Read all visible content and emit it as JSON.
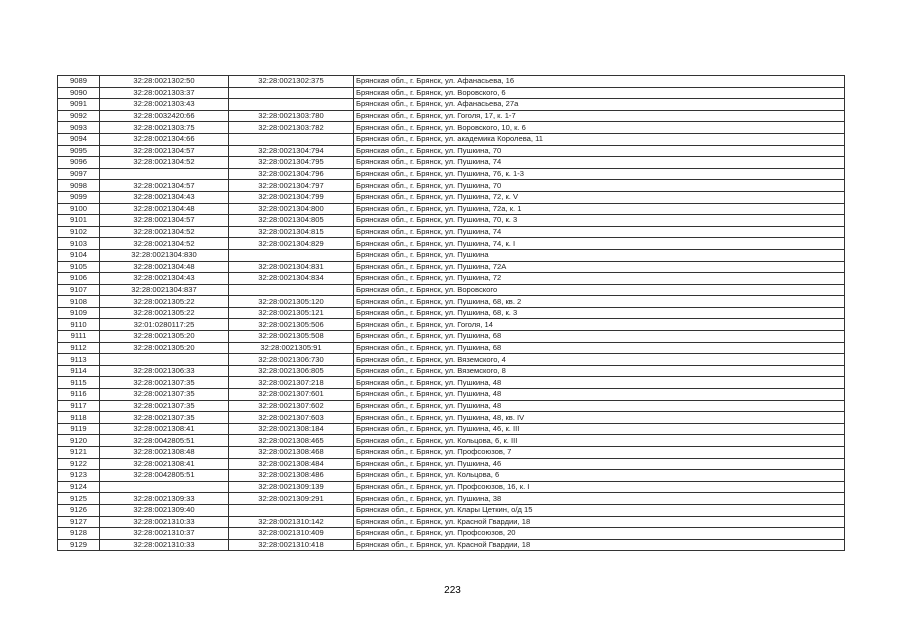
{
  "table": {
    "rows": [
      [
        "9089",
        "32:28:0021302:50",
        "32:28:0021302:375",
        "Брянская обл., г. Брянск, ул. Афанасьева, 16"
      ],
      [
        "9090",
        "32:28:0021303:37",
        "",
        "Брянская обл., г. Брянск, ул. Воровского, 6"
      ],
      [
        "9091",
        "32:28:0021303:43",
        "",
        "Брянская обл., г. Брянск, ул. Афанасьева, 27а"
      ],
      [
        "9092",
        "32:28:0032420:66",
        "32:28:0021303:780",
        "Брянская обл., г. Брянск, ул. Гоголя, 17, к. 1-7"
      ],
      [
        "9093",
        "32:28:0021303:75",
        "32:28:0021303:782",
        "Брянская обл., г. Брянск, ул. Воровского, 10, к. 6"
      ],
      [
        "9094",
        "32:28:0021304:66",
        "",
        "Брянская обл., г. Брянск, ул. академика Королева, 11"
      ],
      [
        "9095",
        "32:28:0021304:57",
        "32:28:0021304:794",
        "Брянская обл., г. Брянск, ул. Пушкина, 70"
      ],
      [
        "9096",
        "32:28:0021304:52",
        "32:28:0021304:795",
        "Брянская обл., г. Брянск, ул. Пушкина, 74"
      ],
      [
        "9097",
        "",
        "32:28:0021304:796",
        "Брянская обл., г. Брянск, ул. Пушкина, 76, к. 1-3"
      ],
      [
        "9098",
        "32:28:0021304:57",
        "32:28:0021304:797",
        "Брянская обл., г. Брянск, ул. Пушкина, 70"
      ],
      [
        "9099",
        "32:28:0021304:43",
        "32:28:0021304:799",
        "Брянская обл., г. Брянск, ул. Пушкина, 72, к. V"
      ],
      [
        "9100",
        "32:28:0021304:48",
        "32:28:0021304:800",
        "Брянская обл., г. Брянск, ул. Пушкина, 72а, к. 1"
      ],
      [
        "9101",
        "32:28:0021304:57",
        "32:28:0021304:805",
        "Брянская обл., г. Брянск, ул. Пушкина, 70, к. 3"
      ],
      [
        "9102",
        "32:28:0021304:52",
        "32:28:0021304:815",
        "Брянская обл., г. Брянск, ул. Пушкина, 74"
      ],
      [
        "9103",
        "32:28:0021304:52",
        "32:28:0021304:829",
        "Брянская обл., г. Брянск, ул. Пушкина, 74, к. I"
      ],
      [
        "9104",
        "32:28:0021304:830",
        "",
        "Брянская обл., г. Брянск, ул. Пушкина"
      ],
      [
        "9105",
        "32:28:0021304:48",
        "32:28:0021304:831",
        "Брянская обл., г. Брянск, ул. Пушкина, 72А"
      ],
      [
        "9106",
        "32:28:0021304:43",
        "32:28:0021304:834",
        "Брянская обл., г. Брянск, ул. Пушкина, 72"
      ],
      [
        "9107",
        "32:28:0021304:837",
        "",
        "Брянская обл., г. Брянск, ул. Воровского"
      ],
      [
        "9108",
        "32:28:0021305:22",
        "32:28:0021305:120",
        "Брянская обл., г. Брянск, ул. Пушкина, 68, кв. 2"
      ],
      [
        "9109",
        "32:28:0021305:22",
        "32:28:0021305:121",
        "Брянская обл., г. Брянск, ул. Пушкина, 68, к. 3"
      ],
      [
        "9110",
        "32:01:0280117:25",
        "32:28:0021305:506",
        "Брянская обл., г. Брянск, ул. Гоголя, 14"
      ],
      [
        "9111",
        "32:28:0021305:20",
        "32:28:0021305:508",
        "Брянская обл., г. Брянск, ул. Пушкина, 68"
      ],
      [
        "9112",
        "32:28:0021305:20",
        "32:28:0021305:91",
        "Брянская обл., г. Брянск, ул. Пушкина, 68"
      ],
      [
        "9113",
        "",
        "32:28:0021306:730",
        "Брянская обл., г. Брянск, ул. Вяземского, 4"
      ],
      [
        "9114",
        "32:28:0021306:33",
        "32:28:0021306:805",
        "Брянская обл., г. Брянск, ул. Вяземского, 8"
      ],
      [
        "9115",
        "32:28:0021307:35",
        "32:28:0021307:218",
        "Брянская обл., г. Брянск, ул. Пушкина, 48"
      ],
      [
        "9116",
        "32:28:0021307:35",
        "32:28:0021307:601",
        "Брянская обл., г. Брянск, ул. Пушкина, 48"
      ],
      [
        "9117",
        "32:28:0021307:35",
        "32:28:0021307:602",
        "Брянская обл., г. Брянск, ул. Пушкина, 48"
      ],
      [
        "9118",
        "32:28:0021307:35",
        "32:28:0021307:603",
        "Брянская обл., г. Брянск, ул. Пушкина, 48, кв. IV"
      ],
      [
        "9119",
        "32:28:0021308:41",
        "32:28:0021308:184",
        "Брянская обл., г. Брянск, ул. Пушкина, 46, к. III"
      ],
      [
        "9120",
        "32:28:0042805:51",
        "32:28:0021308:465",
        "Брянская обл., г. Брянск, ул. Кольцова, 6, к. III"
      ],
      [
        "9121",
        "32:28:0021308:48",
        "32:28:0021308:468",
        "Брянская обл., г. Брянск, ул. Профсоюзов, 7"
      ],
      [
        "9122",
        "32:28:0021308:41",
        "32:28:0021308:484",
        "Брянская обл., г. Брянск, ул. Пушкина, 46"
      ],
      [
        "9123",
        "32:28:0042805:51",
        "32:28:0021308:486",
        "Брянская обл., г. Брянск, ул. Кольцова, 6"
      ],
      [
        "9124",
        "",
        "32:28:0021309:139",
        "Брянская обл., г. Брянск, ул. Профсоюзов, 16, к. I"
      ],
      [
        "9125",
        "32:28:0021309:33",
        "32:28:0021309:291",
        "Брянская обл., г. Брянск, ул. Пушкина, 38"
      ],
      [
        "9126",
        "32:28:0021309:40",
        "",
        "Брянская обл., г. Брянск, ул. Клары Цеткин, о/д 15"
      ],
      [
        "9127",
        "32:28:0021310:33",
        "32:28:0021310:142",
        "Брянская обл., г. Брянск, ул. Красной Гвардии, 18"
      ],
      [
        "9128",
        "32:28:0021310:37",
        "32:28:0021310:409",
        "Брянская обл., г. Брянск, ул. Профсоюзов, 20"
      ],
      [
        "9129",
        "32:28:0021310:33",
        "32:28:0021310:418",
        "Брянская обл., г. Брянск, ул. Красной Гвардии, 18"
      ]
    ]
  },
  "page_number": "223"
}
